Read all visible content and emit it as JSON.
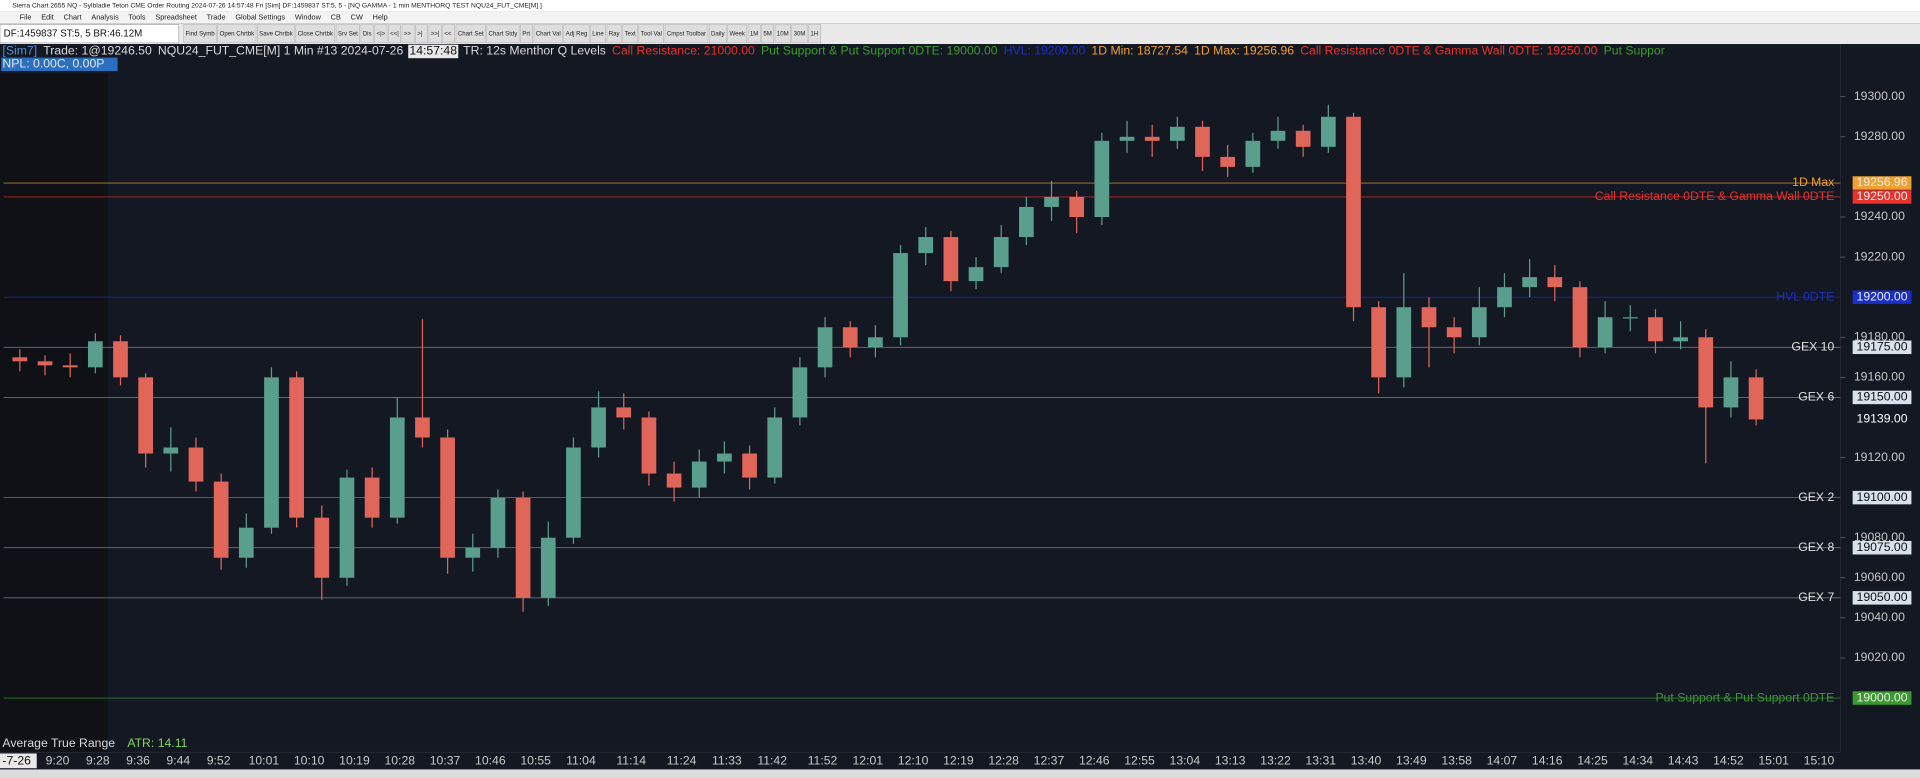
{
  "window": {
    "title": "Sierra Chart 2655 NQ - Sylbladie Teton CME Order Routing 2024-07-26  14:57:48 Fri [Sim] DF:1459837  ST:5, 5 - [NQ GAMMA - 1 min MENTHORQ TEST NQU24_FUT_CME[M] ]"
  },
  "menu": [
    "File",
    "Edit",
    "Chart",
    "Analysis",
    "Tools",
    "Spreadsheet",
    "Trade",
    "Global Settings",
    "Window",
    "CB",
    "CW",
    "Help"
  ],
  "toolbar": {
    "status": "DF:1459837  ST:5, 5  BR:46.12M",
    "buttons": [
      "Find Symb",
      "Open Chrtbk",
      "Save Chrtbk",
      "Close Chrtbk",
      "Srv Set",
      "Dis",
      "<|>",
      "<<|",
      ">>",
      ">|",
      ">>|",
      "<<",
      "Chart Set",
      "Chart Stdy",
      "Prt",
      "Chart Val",
      "Adj Reg",
      "Line",
      "Ray",
      "Text",
      "Tool Val",
      "Cmpst Toolbar",
      "Daily",
      "Week",
      "1M",
      "5M",
      "10M",
      "30M",
      "1H"
    ]
  },
  "chart_header": {
    "line1": [
      {
        "text": "[Sim7]",
        "color": "#4f8fd8"
      },
      {
        "text": "Trade: 1@19246.50",
        "color": "#d8d8d8"
      },
      {
        "text": "NQU24_FUT_CME[M]  1 Min  #13 2024-07-26",
        "color": "#d8d8d8"
      },
      {
        "text": "14:57:48",
        "color": "#111111",
        "box": "#e8e8e8"
      },
      {
        "text": "TR: 12s Menthor Q Levels",
        "color": "#d8d8d8"
      },
      {
        "text": "Call Resistance: 21000.00",
        "color": "#e8322c"
      },
      {
        "text": "Put Support & Put Support 0DTE: 19000.00",
        "color": "#3a9a30"
      },
      {
        "text": "HVL: 19200.00",
        "color": "#1a2fc8"
      },
      {
        "text": "1D Min: 18727.54",
        "color": "#f0a030"
      },
      {
        "text": "1D Max: 19256.96",
        "color": "#f0a030"
      },
      {
        "text": "Call Resistance 0DTE & Gamma Wall 0DTE: 19250.00",
        "color": "#e8322c"
      },
      {
        "text": "Put Suppor",
        "color": "#3a9a30"
      }
    ],
    "line2": "NPL: 0.00C, 0.00P"
  },
  "chart_data": {
    "type": "candlestick",
    "x": [
      "9:10",
      "9:15",
      "9:20",
      "9:25",
      "9:30",
      "9:35",
      "9:40",
      "9:45",
      "9:50",
      "9:55",
      "10:00",
      "10:05",
      "10:10",
      "10:15",
      "10:20",
      "10:25",
      "10:30",
      "10:35",
      "10:40",
      "10:45",
      "10:50",
      "10:55",
      "11:00",
      "11:05",
      "11:10",
      "11:15",
      "11:20",
      "11:25",
      "11:30",
      "11:35",
      "11:40",
      "11:45",
      "11:50",
      "11:55",
      "12:00",
      "12:05",
      "12:10",
      "12:15",
      "12:20",
      "12:25",
      "12:30",
      "12:35",
      "12:40",
      "12:45",
      "12:50",
      "12:55",
      "13:00",
      "13:05",
      "13:10",
      "13:15",
      "13:20",
      "13:25",
      "13:30",
      "13:35",
      "13:40",
      "13:45",
      "13:50",
      "13:55",
      "14:00",
      "14:05",
      "14:10",
      "14:15",
      "14:20",
      "14:25",
      "14:30",
      "14:35",
      "14:40",
      "14:45",
      "14:50",
      "14:55"
    ],
    "open": [
      19170,
      19168,
      19166,
      19165,
      19178,
      19160,
      19122,
      19125,
      19108,
      19070,
      19085,
      19160,
      19090,
      19060,
      19110,
      19090,
      19140,
      19130,
      19070,
      19075,
      19100,
      19050,
      19080,
      19125,
      19145,
      19140,
      19112,
      19105,
      19118,
      19122,
      19110,
      19140,
      19165,
      19185,
      19175,
      19180,
      19222,
      19230,
      19208,
      19215,
      19230,
      19245,
      19250,
      19240,
      19278,
      19280,
      19278,
      19285,
      19270,
      19265,
      19278,
      19283,
      19275,
      19290,
      19195,
      19160,
      19195,
      19185,
      19180,
      19195,
      19205,
      19210,
      19205,
      19175,
      19190,
      19190,
      19178,
      19180,
      19145,
      19160
    ],
    "high": [
      19174,
      19171,
      19172,
      19182,
      19181,
      19162,
      19135,
      19130,
      19112,
      19092,
      19165,
      19163,
      19096,
      19114,
      19115,
      19150,
      19189,
      19134,
      19082,
      19104,
      19103,
      19088,
      19130,
      19153,
      19152,
      19143,
      19118,
      19124,
      19128,
      19126,
      19145,
      19170,
      19190,
      19188,
      19186,
      19226,
      19235,
      19233,
      19220,
      19236,
      19250,
      19258,
      19253,
      19282,
      19288,
      19286,
      19290,
      19288,
      19276,
      19282,
      19290,
      19286,
      19296,
      19292,
      19198,
      19212,
      19200,
      19190,
      19205,
      19212,
      19219,
      19216,
      19208,
      19198,
      19196,
      19194,
      19188,
      19184,
      19168,
      19164
    ],
    "low": [
      19163,
      19161,
      19160,
      19162,
      19156,
      19115,
      19113,
      19103,
      19064,
      19065,
      19082,
      19085,
      19049,
      19056,
      19085,
      19087,
      19125,
      19062,
      19063,
      19070,
      19043,
      19046,
      19077,
      19120,
      19134,
      19106,
      19098,
      19100,
      19112,
      19104,
      19107,
      19136,
      19160,
      19170,
      19170,
      19176,
      19216,
      19203,
      19204,
      19212,
      19226,
      19238,
      19232,
      19236,
      19272,
      19270,
      19274,
      19263,
      19260,
      19262,
      19274,
      19270,
      19272,
      19188,
      19152,
      19155,
      19165,
      19172,
      19176,
      19190,
      19200,
      19198,
      19170,
      19172,
      19183,
      19172,
      19174,
      19117,
      19140,
      19136
    ],
    "close": [
      19168,
      19166,
      19165,
      19178,
      19160,
      19122,
      19125,
      19108,
      19070,
      19085,
      19160,
      19090,
      19060,
      19110,
      19090,
      19140,
      19130,
      19070,
      19075,
      19100,
      19050,
      19080,
      19125,
      19145,
      19140,
      19112,
      19105,
      19118,
      19122,
      19110,
      19140,
      19165,
      19185,
      19175,
      19180,
      19222,
      19230,
      19208,
      19215,
      19230,
      19245,
      19250,
      19240,
      19278,
      19280,
      19278,
      19285,
      19270,
      19265,
      19278,
      19283,
      19275,
      19290,
      19195,
      19160,
      19195,
      19185,
      19180,
      19195,
      19205,
      19210,
      19205,
      19175,
      19190,
      19190,
      19178,
      19180,
      19145,
      19160,
      19139
    ],
    "up_color": "#5a9e8e",
    "down_color": "#e0665a",
    "ylim": [
      18982,
      19310
    ],
    "yticks": [
      {
        "value": 19300,
        "label": "19300.00"
      },
      {
        "value": 19280,
        "label": "19280.00"
      },
      {
        "value": 19240,
        "label": "19240.00"
      },
      {
        "value": 19220,
        "label": "19220.00"
      },
      {
        "value": 19180,
        "label": "19180.00"
      },
      {
        "value": 19160,
        "label": "19160.00"
      },
      {
        "value": 19120,
        "label": "19120.00"
      },
      {
        "value": 19080,
        "label": "19080.00"
      },
      {
        "value": 19060,
        "label": "19060.00"
      },
      {
        "value": 19040,
        "label": "19040.00"
      },
      {
        "value": 19020,
        "label": "19020.00"
      }
    ],
    "x_date_stub": "-7-26",
    "x_labels": [
      "9:20",
      "9:28",
      "9:36",
      "9:44",
      "9:52",
      "10:01",
      "10:10",
      "10:19",
      "10:28",
      "10:37",
      "10:46",
      "10:55",
      "11:04",
      "11:14",
      "11:24",
      "11:33",
      "11:42",
      "11:52",
      "12:01",
      "12:10",
      "12:19",
      "12:28",
      "12:37",
      "12:46",
      "12:55",
      "13:04",
      "13:13",
      "13:22",
      "13:31",
      "13:40",
      "13:49",
      "13:58",
      "14:07",
      "14:16",
      "14:25",
      "14:34",
      "14:43",
      "14:52",
      "15:01",
      "15:10"
    ],
    "levels": [
      {
        "name": "1D Max",
        "price": 19256.96,
        "color": "#f0a030"
      },
      {
        "name": "Call Resistance 0DTE & Gamma Wall 0DTE",
        "price": {
          "value": 19250,
          "label": "19250.00"
        },
        "color": "#e8322c"
      },
      {
        "name": "HVL 0DTE",
        "price": {
          "value": 19200,
          "label": "19200.00"
        },
        "color": "#1a2fc8"
      },
      {
        "name": "GEX 10",
        "price": {
          "value": 19175,
          "label": "19175.00"
        },
        "color": "#8a8f99"
      },
      {
        "name": "GEX 6",
        "price": {
          "value": 19150,
          "label": "19150.00"
        },
        "color": "#8a8f99"
      },
      {
        "name": "GEX 2",
        "price": {
          "value": 19100,
          "label": "19100.00"
        },
        "color": "#8a8f99"
      },
      {
        "name": "GEX 8",
        "price": {
          "value": 19075,
          "label": "19075.00"
        },
        "color": "#8a8f99"
      },
      {
        "name": "GEX 7",
        "price": {
          "value": 19050,
          "label": "19050.00"
        },
        "color": "#8a8f99"
      },
      {
        "name": "Put Support & Put Support 0DTE",
        "price": {
          "value": 19000,
          "label": "19000.00"
        },
        "color": "#3a9a30"
      }
    ],
    "last_price": {
      "value": 19139,
      "label": "19139.00"
    },
    "study": {
      "name": "Average True Range",
      "value_text": "ATR: 14.11"
    }
  }
}
